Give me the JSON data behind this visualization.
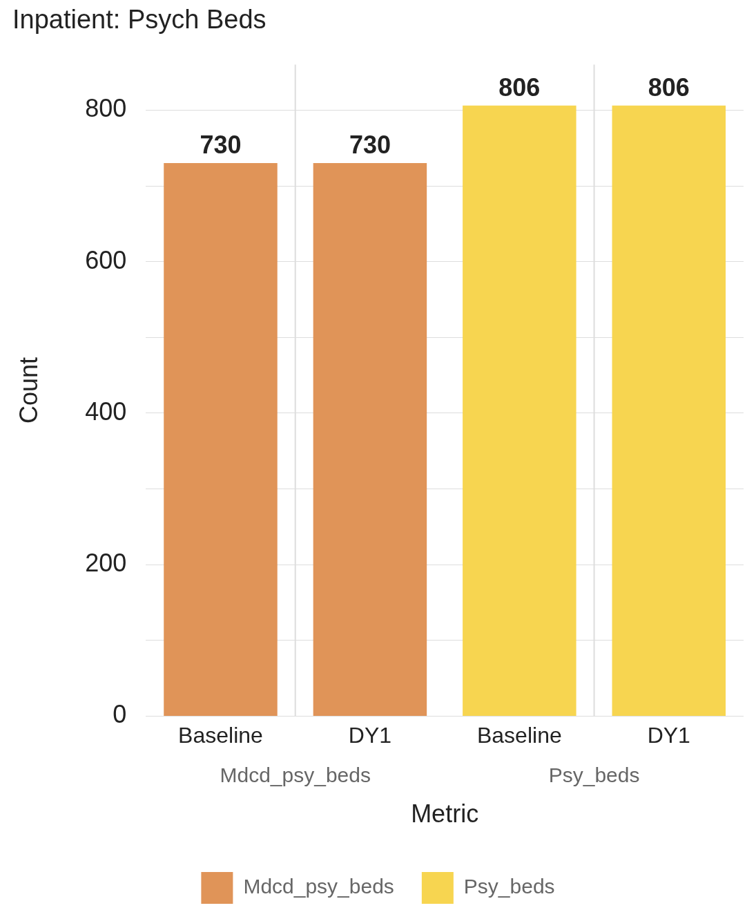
{
  "chart_data": {
    "type": "bar",
    "title": "Inpatient: Psych Beds",
    "xlabel": "Metric",
    "ylabel": "Count",
    "categories": [
      "Baseline",
      "DY1",
      "Baseline",
      "DY1"
    ],
    "series": [
      {
        "name": "Mdcd_psy_beds",
        "color": "#e09458",
        "values": [
          730,
          730,
          null,
          null
        ]
      },
      {
        "name": "Psy_beds",
        "color": "#f7d550",
        "values": [
          null,
          null,
          806,
          806
        ]
      }
    ],
    "ylim": [
      0,
      860
    ],
    "yticks": [
      0,
      {
        "value": 100,
        "label": null
      },
      200,
      {
        "value": 300,
        "label": null
      },
      400,
      {
        "value": 500,
        "label": null
      },
      600,
      {
        "value": 700,
        "label": null
      },
      800
    ],
    "grid": true,
    "legend": "bottom",
    "data_labels": true
  }
}
